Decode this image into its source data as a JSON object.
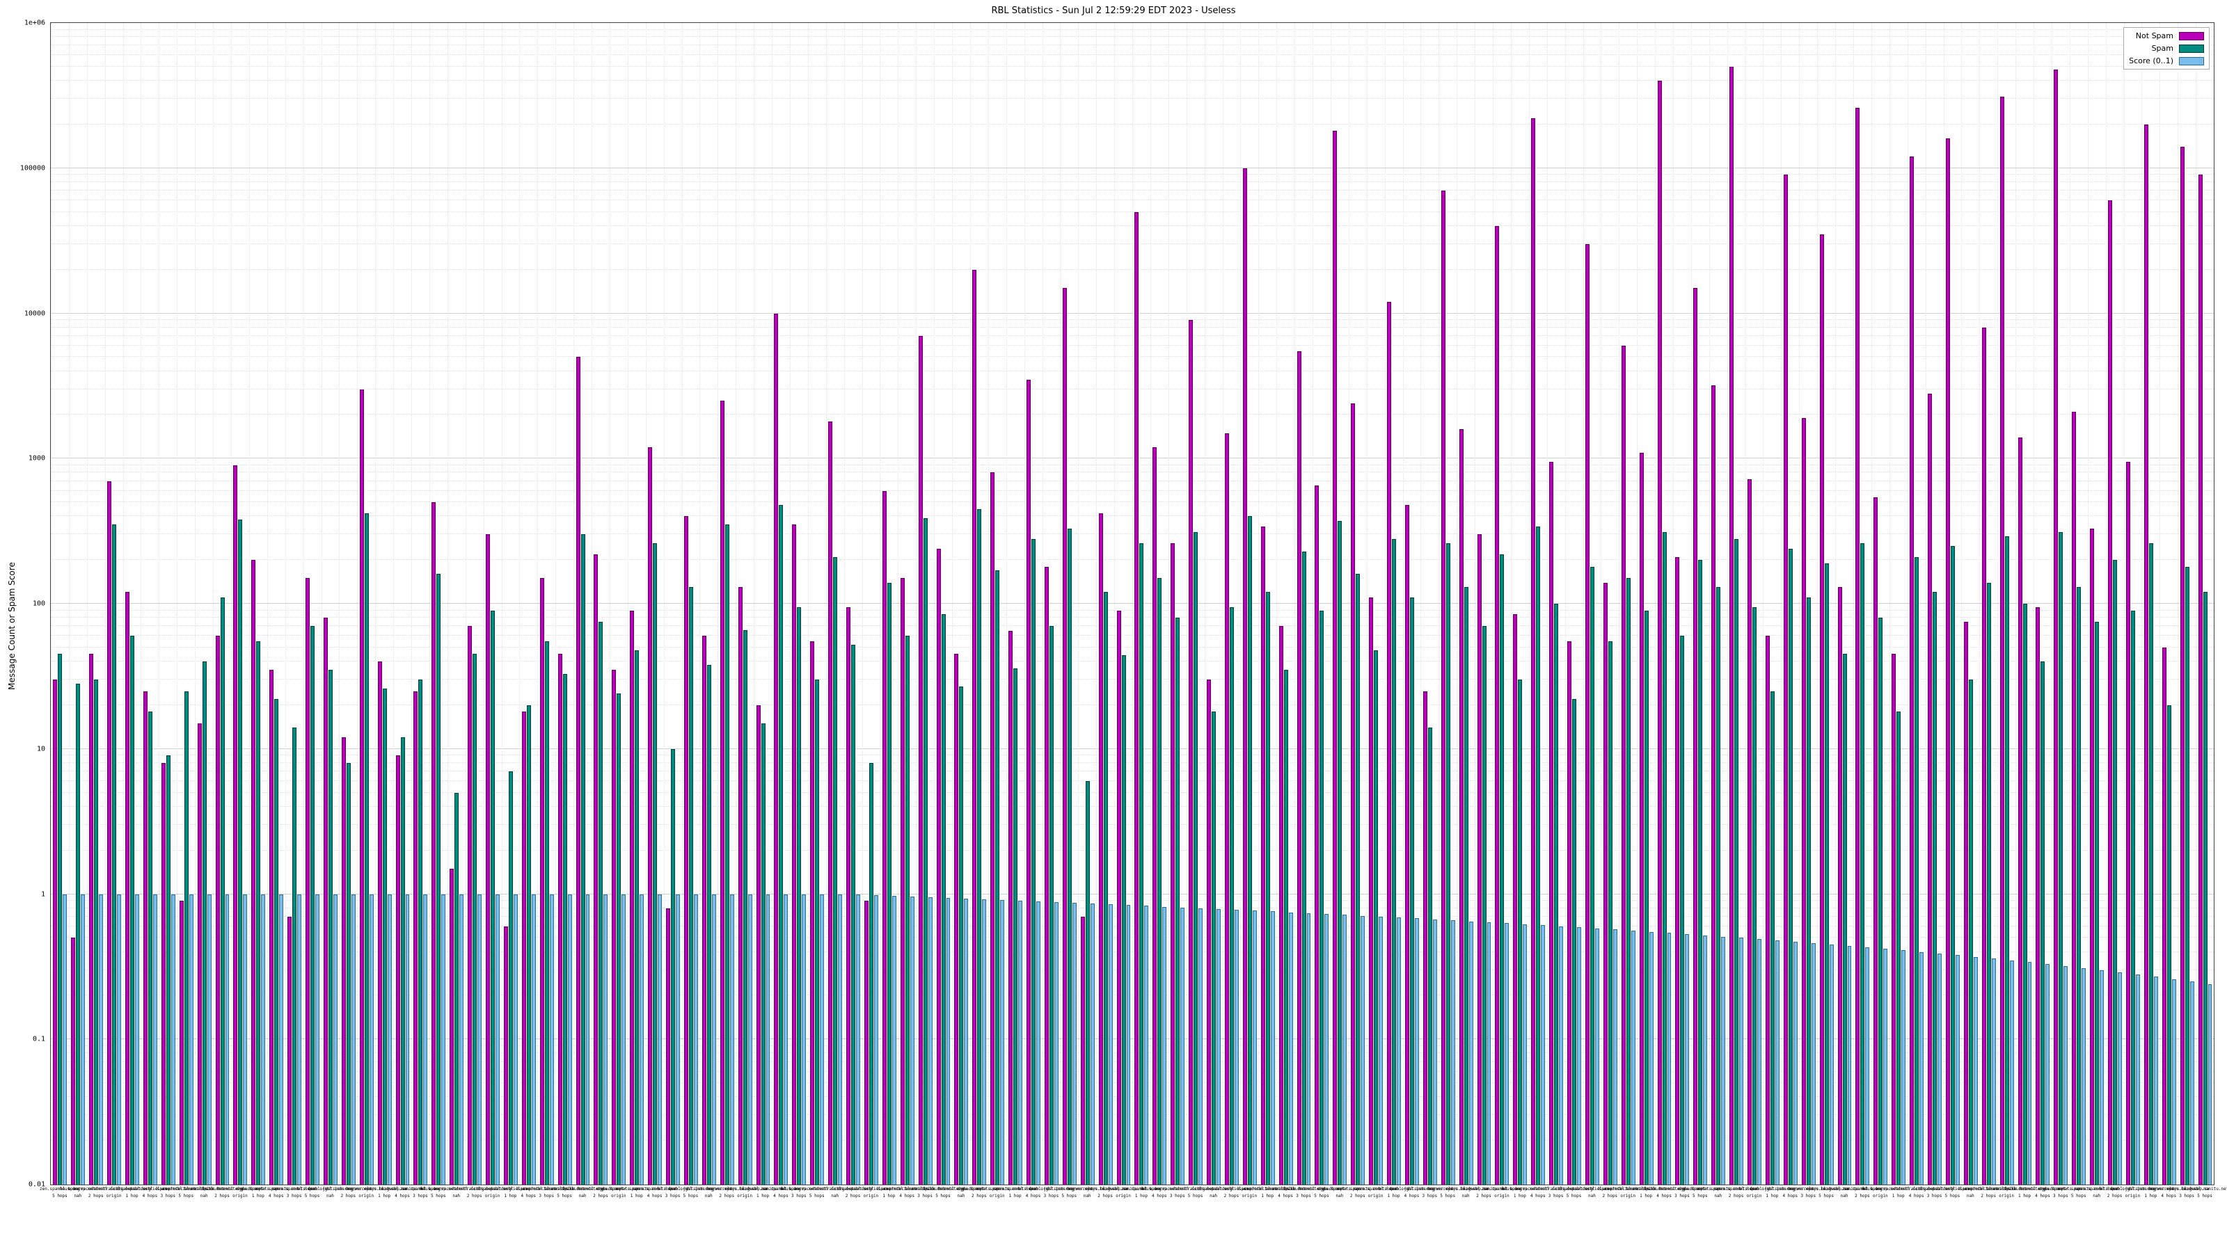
{
  "page": {
    "background": "#ffffff"
  },
  "chart_data": {
    "type": "bar",
    "title": "RBL Statistics - Sun Jul  2 12:59:29 EDT 2023 - Useless",
    "ylabel": "Message Count or Spam Score",
    "xlabel": "",
    "yscale": "log",
    "ylim": [
      0.01,
      1000000
    ],
    "y_ticks": [
      "0.01",
      "0.1",
      "1",
      "10",
      "100",
      "1000",
      "10000",
      "100000",
      "1e+06"
    ],
    "grid": true,
    "legend_position": "top-right",
    "x_label_pool": [
      "zen.spamhaus.org",
      "bl.spamcop.net",
      "b.barracudacentral.org",
      "dnsbl.sorbs.net",
      "cbl.abuseat.org",
      "psbl.surriel.com",
      "dnsbl-1.uceprotect.net",
      "spam.dnsbl.anonmails.de",
      "bl.mailspike.net",
      "dnsbl.dronebl.org",
      "truncate.gbudb.net",
      "dyna.spamrats.com",
      "noptr.spamrats.com",
      "spam.spamrats.com",
      "bl.0spam.org",
      "dnsbl.justspam.org",
      "rbl.interserver.net",
      "bogons.cymru.com",
      "relays.bl.gweep.ca",
      "ix.dnsbl.manitu.net"
    ],
    "x_sublabel_pool": [
      "5 hops",
      "nah",
      "2 hops",
      "origin",
      "1 hop",
      "4 hops",
      "3 hops"
    ],
    "series": [
      {
        "name": "Not Spam",
        "color": "#bb00bb",
        "border": "#5a005a",
        "values": [
          30,
          0.5,
          45,
          700,
          120,
          25,
          8,
          0.9,
          15,
          60,
          900,
          200,
          35,
          0.7,
          150,
          80,
          12,
          3000,
          40,
          9,
          25,
          500,
          1.5,
          70,
          300,
          0.6,
          18,
          150,
          45,
          5000,
          220,
          35,
          90,
          1200,
          0.8,
          400,
          60,
          2500,
          130,
          20,
          10000,
          350,
          55,
          1800,
          95,
          0.9,
          600,
          150,
          7000,
          240,
          45,
          20000,
          800,
          65,
          3500,
          180,
          15000,
          0.7,
          420,
          90,
          50000,
          1200,
          260,
          9000,
          30,
          1500,
          100000,
          340,
          70,
          5500,
          650,
          180000,
          2400,
          110,
          12000,
          480,
          25,
          70000,
          1600,
          300,
          40000,
          85,
          220000,
          950,
          55,
          30000,
          140,
          6000,
          1100,
          400000,
          210,
          15000,
          3200,
          500000,
          720,
          60,
          90000,
          1900,
          35000,
          130,
          260000,
          540,
          45,
          120000,
          2800,
          160000,
          75,
          8000,
          310000,
          1400,
          95,
          480000,
          2100,
          330,
          60000,
          950,
          200000,
          50,
          140000,
          90000
        ]
      },
      {
        "name": "Spam",
        "color": "#008c80",
        "border": "#003e38",
        "values": [
          45,
          28,
          30,
          350,
          60,
          18,
          9,
          25,
          40,
          110,
          380,
          55,
          22,
          14,
          70,
          35,
          8,
          420,
          26,
          12,
          30,
          160,
          5,
          45,
          90,
          7,
          20,
          55,
          33,
          300,
          75,
          24,
          48,
          260,
          10,
          130,
          38,
          350,
          66,
          15,
          480,
          95,
          30,
          210,
          52,
          8,
          140,
          60,
          390,
          85,
          27,
          450,
          170,
          36,
          280,
          70,
          330,
          6,
          120,
          44,
          260,
          150,
          80,
          310,
          18,
          95,
          400,
          120,
          35,
          230,
          90,
          370,
          160,
          48,
          280,
          110,
          14,
          260,
          130,
          70,
          220,
          30,
          340,
          100,
          22,
          180,
          55,
          150,
          90,
          310,
          60,
          200,
          130,
          280,
          95,
          25,
          240,
          110,
          190,
          45,
          260,
          80,
          18,
          210,
          120,
          250,
          30,
          140,
          290,
          100,
          40,
          310,
          130,
          75,
          200,
          90,
          260,
          20,
          180,
          120
        ]
      },
      {
        "name": "Score (0..1)",
        "color": "#79bde8",
        "border": "#2a6e9e",
        "values": [
          1.0,
          1.0,
          1.0,
          1.0,
          1.0,
          1.0,
          1.0,
          1.0,
          1.0,
          1.0,
          1.0,
          1.0,
          1.0,
          1.0,
          1.0,
          1.0,
          1.0,
          1.0,
          1.0,
          1.0,
          1.0,
          1.0,
          1.0,
          1.0,
          1.0,
          1.0,
          1.0,
          1.0,
          1.0,
          1.0,
          1.0,
          1.0,
          1.0,
          1.0,
          1.0,
          1.0,
          1.0,
          1.0,
          1.0,
          1.0,
          1.0,
          1.0,
          1.0,
          1.0,
          1.0,
          0.98,
          0.97,
          0.96,
          0.95,
          0.94,
          0.93,
          0.92,
          0.91,
          0.9,
          0.89,
          0.88,
          0.87,
          0.86,
          0.85,
          0.84,
          0.83,
          0.82,
          0.81,
          0.8,
          0.79,
          0.78,
          0.77,
          0.76,
          0.75,
          0.74,
          0.73,
          0.72,
          0.71,
          0.7,
          0.69,
          0.68,
          0.67,
          0.66,
          0.65,
          0.64,
          0.63,
          0.62,
          0.61,
          0.6,
          0.59,
          0.58,
          0.57,
          0.56,
          0.55,
          0.54,
          0.53,
          0.52,
          0.51,
          0.5,
          0.49,
          0.48,
          0.47,
          0.46,
          0.45,
          0.44,
          0.43,
          0.42,
          0.41,
          0.4,
          0.39,
          0.38,
          0.37,
          0.36,
          0.35,
          0.34,
          0.33,
          0.32,
          0.31,
          0.3,
          0.29,
          0.28,
          0.27,
          0.26,
          0.25,
          0.24
        ]
      }
    ]
  }
}
